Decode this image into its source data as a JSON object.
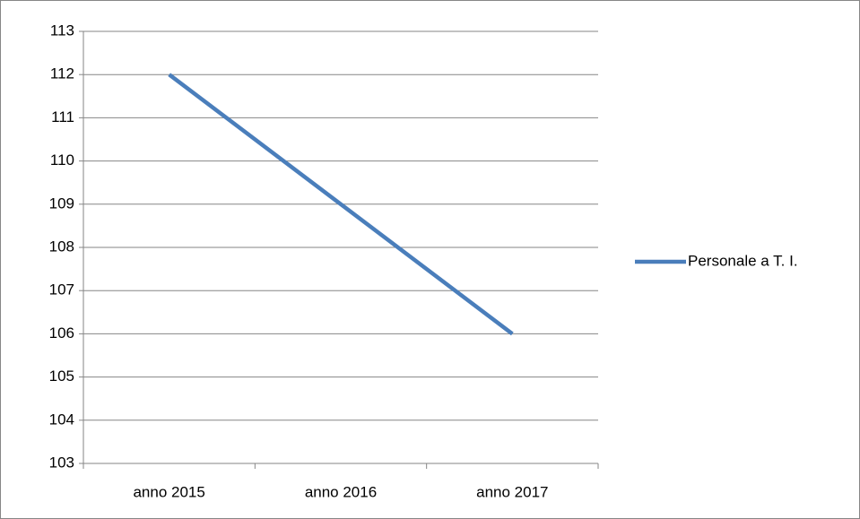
{
  "chart_data": {
    "type": "line",
    "categories": [
      "anno 2015",
      "anno 2016",
      "anno 2017"
    ],
    "series": [
      {
        "name": "Personale a T. I.",
        "color": "#4a7ebb",
        "values": [
          112,
          109,
          106
        ]
      }
    ],
    "ylim": [
      103,
      113
    ],
    "yticks": [
      103,
      104,
      105,
      106,
      107,
      108,
      109,
      110,
      111,
      112,
      113
    ],
    "grid": true,
    "legend": "right"
  }
}
